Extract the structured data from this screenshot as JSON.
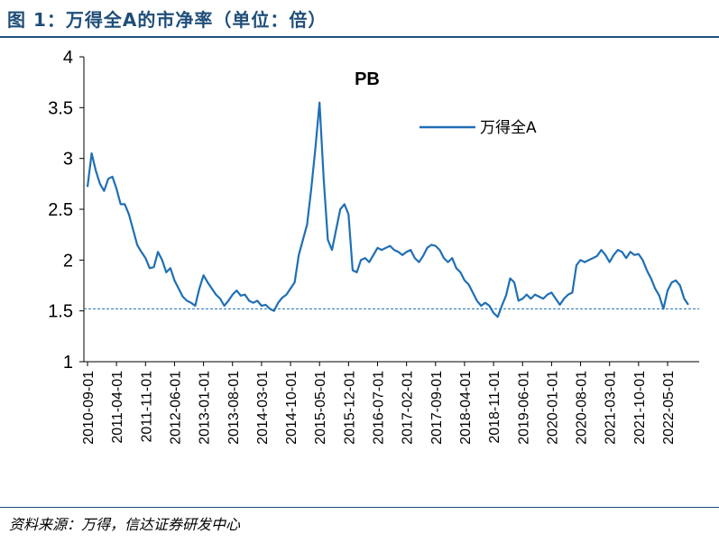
{
  "figure_title": "图 1：万得全A的市净率（单位：倍）",
  "source_note": "资料来源：万得，信达证券研发中心",
  "chart_data": {
    "type": "line",
    "title": "PB",
    "ylim": [
      1,
      4
    ],
    "yticks": [
      "1",
      "1.5",
      "2",
      "2.5",
      "3",
      "3.5",
      "4"
    ],
    "xticks": [
      "2010-09-01",
      "2011-04-01",
      "2011-11-01",
      "2012-06-01",
      "2013-01-01",
      "2013-08-01",
      "2014-03-01",
      "2014-10-01",
      "2015-05-01",
      "2015-12-01",
      "2016-07-01",
      "2017-02-01",
      "2017-09-01",
      "2018-04-01",
      "2018-11-01",
      "2019-06-01",
      "2020-01-01",
      "2020-08-01",
      "2021-03-01",
      "2021-10-01",
      "2022-05-01"
    ],
    "legend_position": "top-right",
    "reference_line": 1.52,
    "series": [
      {
        "name": "万得全A",
        "color": "#1f6fb5",
        "x": [
          "2010-09",
          "2010-10",
          "2010-11",
          "2010-12",
          "2011-01",
          "2011-02",
          "2011-03",
          "2011-04",
          "2011-05",
          "2011-06",
          "2011-07",
          "2011-08",
          "2011-09",
          "2011-10",
          "2011-11",
          "2011-12",
          "2012-01",
          "2012-02",
          "2012-03",
          "2012-04",
          "2012-05",
          "2012-06",
          "2012-07",
          "2012-08",
          "2012-09",
          "2012-10",
          "2012-11",
          "2012-12",
          "2013-01",
          "2013-02",
          "2013-03",
          "2013-04",
          "2013-05",
          "2013-06",
          "2013-07",
          "2013-08",
          "2013-09",
          "2013-10",
          "2013-11",
          "2013-12",
          "2014-01",
          "2014-02",
          "2014-03",
          "2014-04",
          "2014-05",
          "2014-06",
          "2014-07",
          "2014-08",
          "2014-09",
          "2014-10",
          "2014-11",
          "2014-12",
          "2015-01",
          "2015-02",
          "2015-03",
          "2015-04",
          "2015-05",
          "2015-06",
          "2015-07",
          "2015-08",
          "2015-09",
          "2015-10",
          "2015-11",
          "2015-12",
          "2016-01",
          "2016-02",
          "2016-03",
          "2016-04",
          "2016-05",
          "2016-06",
          "2016-07",
          "2016-08",
          "2016-09",
          "2016-10",
          "2016-11",
          "2016-12",
          "2017-01",
          "2017-02",
          "2017-03",
          "2017-04",
          "2017-05",
          "2017-06",
          "2017-07",
          "2017-08",
          "2017-09",
          "2017-10",
          "2017-11",
          "2017-12",
          "2018-01",
          "2018-02",
          "2018-03",
          "2018-04",
          "2018-05",
          "2018-06",
          "2018-07",
          "2018-08",
          "2018-09",
          "2018-10",
          "2018-11",
          "2018-12",
          "2019-01",
          "2019-02",
          "2019-03",
          "2019-04",
          "2019-05",
          "2019-06",
          "2019-07",
          "2019-08",
          "2019-09",
          "2019-10",
          "2019-11",
          "2019-12",
          "2020-01",
          "2020-02",
          "2020-03",
          "2020-04",
          "2020-05",
          "2020-06",
          "2020-07",
          "2020-08",
          "2020-09",
          "2020-10",
          "2020-11",
          "2020-12",
          "2021-01",
          "2021-02",
          "2021-03",
          "2021-04",
          "2021-05",
          "2021-06",
          "2021-07",
          "2021-08",
          "2021-09",
          "2021-10",
          "2021-11",
          "2021-12",
          "2022-01",
          "2022-02",
          "2022-03",
          "2022-04",
          "2022-05",
          "2022-06",
          "2022-07",
          "2022-08",
          "2022-09",
          "2022-10"
        ],
        "values": [
          2.72,
          3.05,
          2.88,
          2.75,
          2.68,
          2.8,
          2.82,
          2.7,
          2.55,
          2.55,
          2.45,
          2.3,
          2.15,
          2.08,
          2.02,
          1.92,
          1.93,
          2.08,
          2.0,
          1.88,
          1.92,
          1.8,
          1.72,
          1.64,
          1.6,
          1.58,
          1.55,
          1.72,
          1.85,
          1.78,
          1.72,
          1.66,
          1.62,
          1.55,
          1.6,
          1.66,
          1.7,
          1.65,
          1.66,
          1.6,
          1.58,
          1.6,
          1.55,
          1.56,
          1.52,
          1.5,
          1.58,
          1.63,
          1.66,
          1.72,
          1.78,
          2.05,
          2.2,
          2.35,
          2.7,
          3.1,
          3.55,
          2.8,
          2.2,
          2.1,
          2.3,
          2.5,
          2.55,
          2.45,
          1.9,
          1.88,
          2.0,
          2.02,
          1.98,
          2.05,
          2.12,
          2.1,
          2.12,
          2.14,
          2.1,
          2.08,
          2.05,
          2.08,
          2.1,
          2.02,
          1.98,
          2.04,
          2.12,
          2.15,
          2.14,
          2.1,
          2.02,
          1.98,
          2.02,
          1.92,
          1.88,
          1.8,
          1.76,
          1.68,
          1.6,
          1.55,
          1.58,
          1.55,
          1.48,
          1.44,
          1.55,
          1.65,
          1.82,
          1.78,
          1.6,
          1.62,
          1.66,
          1.62,
          1.66,
          1.64,
          1.62,
          1.66,
          1.68,
          1.62,
          1.56,
          1.62,
          1.66,
          1.68,
          1.95,
          2.0,
          1.98,
          2.0,
          2.02,
          2.04,
          2.1,
          2.05,
          1.98,
          2.05,
          2.1,
          2.08,
          2.02,
          2.08,
          2.05,
          2.06,
          2.0,
          1.9,
          1.82,
          1.72,
          1.65,
          1.52,
          1.7,
          1.78,
          1.8,
          1.75,
          1.62,
          1.56
        ]
      }
    ]
  }
}
